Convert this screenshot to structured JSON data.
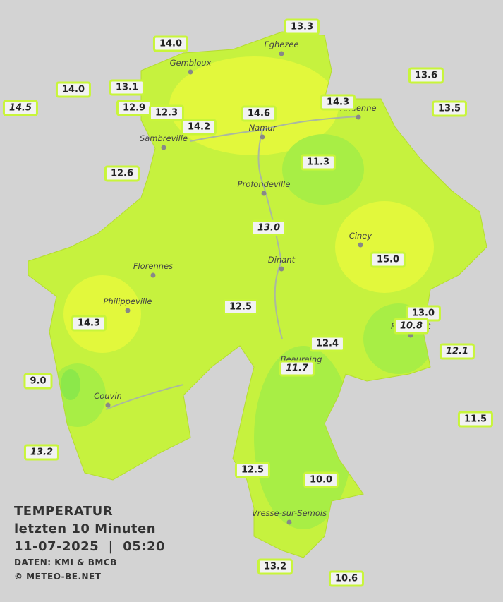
{
  "title": [
    "TEMPERATUR",
    "letzten 10 Minuten",
    "11-07-2025  |  05:20"
  ],
  "credits": [
    "DATEN: KMI & BMCB",
    "© METEO-BE.NET"
  ],
  "stations": [
    "13.3",
    "14.0",
    "14.0",
    "13.1",
    "13.6",
    "14.5",
    "12.9",
    "12.3",
    "14.6",
    "14.3",
    "13.5",
    "14.2",
    "12.6",
    "11.3",
    "13.0",
    "15.0",
    "12.5",
    "13.0",
    "10.8",
    "14.3",
    "12.4",
    "12.1",
    "11.7",
    "9.0",
    "11.5",
    "13.2",
    "12.5",
    "10.0",
    "13.2",
    "10.6"
  ],
  "cities": [
    "Eghezee",
    "Gembloux",
    "Andenne",
    "Namur",
    "Sambreville",
    "Profondeville",
    "Ciney",
    "Dinant",
    "Florennes",
    "Philippeville",
    "Rochefort",
    "Beauraing",
    "Couvin",
    "Vresse-sur-Semois"
  ]
}
